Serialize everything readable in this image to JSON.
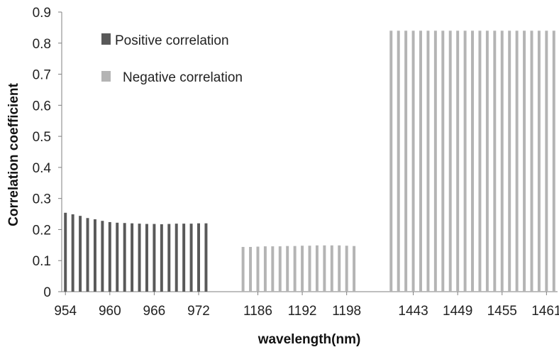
{
  "chart_data": {
    "type": "bar",
    "xlabel": "wavelength(nm)",
    "ylabel": "Correlation coefficient",
    "ylim": [
      0,
      0.9
    ],
    "yticks": [
      "0",
      "0.1",
      "0.2",
      "0.3",
      "0.4",
      "0.5",
      "0.6",
      "0.7",
      "0.8",
      "0.9"
    ],
    "grid": false,
    "legend_position": "top-left",
    "legend": [
      {
        "label": "Positive correlation",
        "color": "#595959"
      },
      {
        "label": "Negative correlation",
        "color": "#b4b4b4"
      }
    ],
    "groups": [
      {
        "series": "Positive correlation",
        "color": "#595959",
        "categories": [
          "954",
          "955",
          "956",
          "957",
          "958",
          "959",
          "960",
          "961",
          "962",
          "963",
          "964",
          "965",
          "966",
          "967",
          "968",
          "969",
          "970",
          "971",
          "972",
          "973"
        ],
        "values": [
          0.254,
          0.249,
          0.244,
          0.237,
          0.233,
          0.228,
          0.224,
          0.222,
          0.221,
          0.22,
          0.219,
          0.218,
          0.218,
          0.217,
          0.218,
          0.219,
          0.219,
          0.219,
          0.22,
          0.22
        ]
      },
      {
        "series": "Negative correlation",
        "color": "#b4b4b4",
        "categories": [
          "1184",
          "1185",
          "1186",
          "1187",
          "1188",
          "1189",
          "1190",
          "1191",
          "1192",
          "1193",
          "1194",
          "1195",
          "1196",
          "1197",
          "1198",
          "1199"
        ],
        "values": [
          0.144,
          0.144,
          0.145,
          0.146,
          0.146,
          0.146,
          0.147,
          0.147,
          0.148,
          0.148,
          0.149,
          0.149,
          0.149,
          0.149,
          0.148,
          0.147
        ]
      },
      {
        "series": "Negative correlation",
        "color": "#b4b4b4",
        "categories": [
          "1440",
          "1441",
          "1442",
          "1443",
          "1444",
          "1445",
          "1446",
          "1447",
          "1448",
          "1449",
          "1450",
          "1451",
          "1452",
          "1453",
          "1454",
          "1455",
          "1456",
          "1457",
          "1458",
          "1459",
          "1460",
          "1461",
          "1462"
        ],
        "values": [
          0.84,
          0.84,
          0.84,
          0.84,
          0.84,
          0.84,
          0.84,
          0.84,
          0.84,
          0.84,
          0.84,
          0.84,
          0.84,
          0.84,
          0.84,
          0.84,
          0.84,
          0.84,
          0.84,
          0.84,
          0.84,
          0.84,
          0.84
        ]
      }
    ],
    "xtick_labels": [
      "954",
      "960",
      "966",
      "972",
      "1186",
      "1192",
      "1198",
      "1443",
      "1449",
      "1455",
      "1461"
    ]
  }
}
